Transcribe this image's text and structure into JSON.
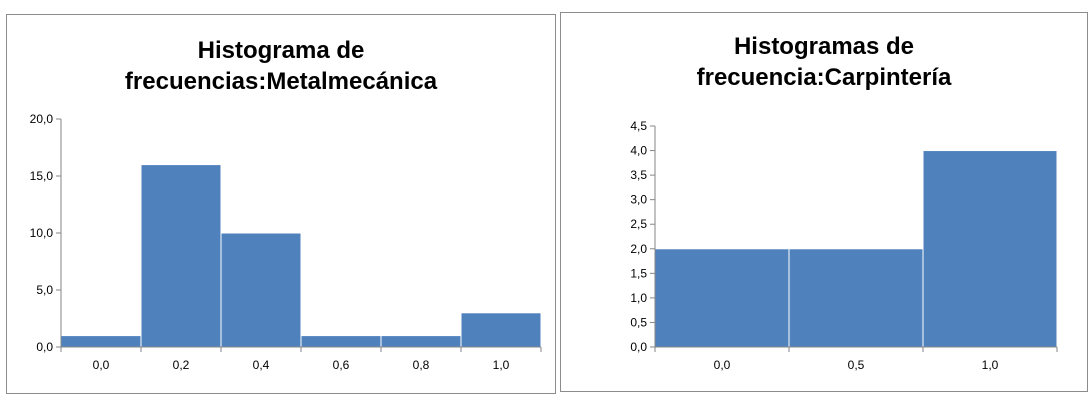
{
  "chart_data": [
    {
      "type": "bar",
      "title_lines": [
        "Histograma de",
        "frecuencias:Metalmecánica"
      ],
      "categories": [
        "0,0",
        "0,2",
        "0,4",
        "0,6",
        "0,8",
        "1,0"
      ],
      "values": [
        1,
        16,
        10,
        1,
        1,
        3
      ],
      "ylim": [
        0,
        20
      ],
      "yticks": [
        "0,0",
        "5,0",
        "10,0",
        "15,0",
        "20,0"
      ],
      "ytick_values": [
        0,
        5,
        10,
        15,
        20
      ],
      "bar_color": "#4f81bd",
      "grid": false,
      "legend": "none"
    },
    {
      "type": "bar",
      "title_lines": [
        "Histogramas de",
        "frecuencia:Carpintería"
      ],
      "categories": [
        "0,0",
        "0,5",
        "1,0"
      ],
      "values": [
        2,
        2,
        4
      ],
      "ylim": [
        0,
        4.5
      ],
      "yticks": [
        "0,0",
        "0,5",
        "1,0",
        "1,5",
        "2,0",
        "2,5",
        "3,0",
        "3,5",
        "4,0",
        "4,5"
      ],
      "ytick_values": [
        0,
        0.5,
        1,
        1.5,
        2,
        2.5,
        3,
        3.5,
        4,
        4.5
      ],
      "bar_color": "#4f81bd",
      "grid": false,
      "legend": "none"
    }
  ]
}
